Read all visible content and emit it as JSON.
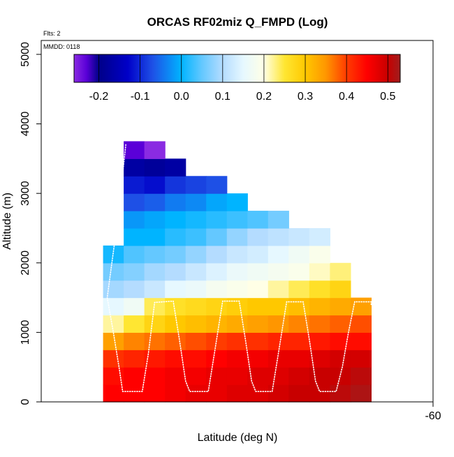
{
  "chart_data": {
    "type": "heatmap",
    "title": "ORCAS RF02miz Q_FMPD (Log)",
    "xlabel": "Latitude (deg N)",
    "ylabel": "Altitude (m)",
    "annotations": {
      "flights": "Flts: 2",
      "mmdd": "MMDD: 0118"
    },
    "xlim": [
      -60.11,
      -59.92
    ],
    "ylim": [
      0,
      5200
    ],
    "x_ticks": [
      {
        "value": -59.92,
        "label": "-60"
      }
    ],
    "y_ticks": [
      {
        "value": 0,
        "label": "0"
      },
      {
        "value": 1000,
        "label": "1000"
      },
      {
        "value": 2000,
        "label": "2000"
      },
      {
        "value": 3000,
        "label": "3000"
      },
      {
        "value": 4000,
        "label": "4000"
      },
      {
        "value": 5000,
        "label": "5000"
      }
    ],
    "colorbar": {
      "range": [
        -0.26,
        0.53
      ],
      "ticks": [
        {
          "value": -0.2,
          "label": "-0.2"
        },
        {
          "value": -0.1,
          "label": "-0.1"
        },
        {
          "value": 0.0,
          "label": "0.0"
        },
        {
          "value": 0.1,
          "label": "0.1"
        },
        {
          "value": 0.2,
          "label": "0.2"
        },
        {
          "value": 0.3,
          "label": "0.3"
        },
        {
          "value": 0.4,
          "label": "0.4"
        },
        {
          "value": 0.5,
          "label": "0.5"
        }
      ],
      "stops": [
        {
          "v": -0.26,
          "c": "#8a2be2"
        },
        {
          "v": -0.23,
          "c": "#5a00d8"
        },
        {
          "v": -0.2,
          "c": "#000088"
        },
        {
          "v": -0.13,
          "c": "#0000c8"
        },
        {
          "v": -0.07,
          "c": "#1e50e6"
        },
        {
          "v": 0.0,
          "c": "#00b4ff"
        },
        {
          "v": 0.05,
          "c": "#64c8ff"
        },
        {
          "v": 0.1,
          "c": "#b4dcff"
        },
        {
          "v": 0.15,
          "c": "#e6f8ff"
        },
        {
          "v": 0.2,
          "c": "#ffffe6"
        },
        {
          "v": 0.25,
          "c": "#ffe632"
        },
        {
          "v": 0.3,
          "c": "#ffc800"
        },
        {
          "v": 0.35,
          "c": "#ff9600"
        },
        {
          "v": 0.4,
          "c": "#ff3c00"
        },
        {
          "v": 0.45,
          "c": "#ff0000"
        },
        {
          "v": 0.5,
          "c": "#c80000"
        },
        {
          "v": 0.53,
          "c": "#a01e1e"
        }
      ]
    },
    "grid": {
      "x_edges": [
        -60.08,
        -60.07,
        -60.06,
        -60.05,
        -60.04,
        -60.03,
        -60.02,
        -60.01,
        -60.0,
        -59.99,
        -59.98,
        -59.97,
        -59.96,
        -59.95
      ],
      "y_edges": [
        0,
        250,
        500,
        750,
        1000,
        1250,
        1500,
        1750,
        2000,
        2250,
        2500,
        2750,
        3000,
        3250,
        3500,
        3750
      ],
      "values": [
        [
          0.45,
          0.45,
          0.45,
          0.46,
          0.47,
          0.47,
          0.48,
          0.48,
          0.49,
          0.5,
          0.5,
          0.51,
          0.52
        ],
        [
          0.44,
          0.45,
          0.45,
          0.46,
          0.46,
          0.47,
          0.47,
          0.48,
          0.48,
          0.49,
          0.5,
          0.5,
          0.51
        ],
        [
          0.41,
          0.42,
          0.43,
          0.44,
          0.44,
          0.45,
          0.46,
          0.46,
          0.47,
          0.47,
          0.48,
          0.49,
          0.49
        ],
        [
          0.34,
          0.36,
          0.37,
          0.38,
          0.39,
          0.4,
          0.41,
          0.41,
          0.42,
          0.42,
          0.43,
          0.44,
          0.44
        ],
        [
          0.22,
          0.25,
          0.28,
          0.3,
          0.31,
          0.32,
          0.33,
          0.34,
          0.35,
          0.36,
          0.37,
          0.38,
          0.39
        ],
        [
          0.15,
          0.17,
          0.24,
          0.26,
          0.27,
          0.28,
          0.29,
          0.3,
          0.3,
          0.31,
          0.32,
          0.33,
          0.34
        ],
        [
          0.09,
          0.1,
          0.12,
          0.15,
          0.16,
          0.18,
          0.19,
          0.2,
          0.22,
          0.24,
          0.26,
          0.28,
          null
        ],
        [
          0.06,
          0.07,
          0.09,
          0.1,
          0.12,
          0.14,
          0.16,
          0.17,
          0.18,
          0.19,
          0.21,
          0.23,
          null
        ],
        [
          0.01,
          0.04,
          0.05,
          0.06,
          0.08,
          0.1,
          0.12,
          0.13,
          0.15,
          0.17,
          0.19,
          null,
          null
        ],
        [
          null,
          0.0,
          0.0,
          0.02,
          0.03,
          0.05,
          0.08,
          0.1,
          0.11,
          0.12,
          0.13,
          null,
          null
        ],
        [
          null,
          -0.02,
          -0.01,
          0.0,
          0.01,
          0.02,
          0.03,
          0.04,
          0.06,
          null,
          null,
          null,
          null
        ],
        [
          null,
          -0.07,
          -0.06,
          -0.04,
          -0.03,
          -0.01,
          0.0,
          null,
          null,
          null,
          null,
          null,
          null
        ],
        [
          null,
          -0.11,
          -0.12,
          -0.09,
          -0.08,
          -0.07,
          null,
          null,
          null,
          null,
          null,
          null,
          null
        ],
        [
          null,
          -0.17,
          -0.18,
          -0.17,
          null,
          null,
          null,
          null,
          null,
          null,
          null,
          null,
          null
        ],
        [
          null,
          -0.23,
          -0.26,
          null,
          null,
          null,
          null,
          null,
          null,
          null,
          null,
          null,
          null
        ]
      ]
    },
    "flight_track": {
      "points": [
        [
          -60.069,
          3700
        ],
        [
          -60.073,
          2600
        ],
        [
          -60.078,
          1500
        ],
        [
          -60.075,
          1000
        ],
        [
          -60.072,
          450
        ],
        [
          -60.0705,
          150
        ],
        [
          -60.061,
          150
        ],
        [
          -60.058,
          700
        ],
        [
          -60.055,
          1430
        ],
        [
          -60.046,
          1450
        ],
        [
          -60.043,
          900
        ],
        [
          -60.04,
          300
        ],
        [
          -60.038,
          150
        ],
        [
          -60.029,
          150
        ],
        [
          -60.026,
          700
        ],
        [
          -60.022,
          1450
        ],
        [
          -60.014,
          1450
        ],
        [
          -60.011,
          900
        ],
        [
          -60.008,
          300
        ],
        [
          -60.006,
          150
        ],
        [
          -59.998,
          150
        ],
        [
          -59.995,
          700
        ],
        [
          -59.991,
          1440
        ],
        [
          -59.983,
          1440
        ],
        [
          -59.98,
          900
        ],
        [
          -59.977,
          300
        ],
        [
          -59.975,
          150
        ],
        [
          -59.967,
          150
        ],
        [
          -59.964,
          500
        ],
        [
          -59.961,
          1000
        ],
        [
          -59.958,
          1440
        ],
        [
          -59.95,
          1440
        ],
        [
          -59.95,
          1400
        ]
      ]
    }
  }
}
